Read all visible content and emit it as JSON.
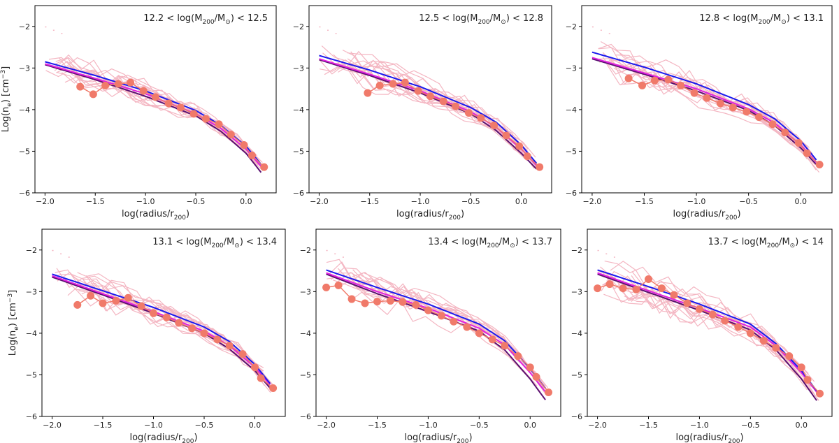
{
  "figure": {
    "ylabel": "Log(n",
    "ylabel_sub": "e",
    "ylabel_unit": ") [cm",
    "ylabel_sup": "−3",
    "ylabel_end": "]",
    "xlabel": "log(radius/r",
    "xlabel_sub": "200",
    "xlabel_end": ")"
  },
  "colors": {
    "individual": "#f4b6c2",
    "median": "#f07a6a",
    "model_blue": "#1a1aee",
    "model_magenta": "#e020e0",
    "model_purple": "#5a1070"
  },
  "chart_data": [
    {
      "type": "line",
      "title": "12.2 < log(M200/M☉) < 12.5",
      "title_parts": {
        "lo": "12.2",
        "hi": "12.5"
      },
      "xlim": [
        -2.1,
        0.3
      ],
      "ylim": [
        -6,
        -1.5
      ],
      "xticks": [
        "−2.0",
        "−1.5",
        "−1.0",
        "−0.5",
        "0.0"
      ],
      "yticks": [
        "−2",
        "−3",
        "−4",
        "−5",
        "−6"
      ],
      "median": {
        "x": [
          -1.65,
          -1.52,
          -1.4,
          -1.27,
          -1.15,
          -1.02,
          -0.9,
          -0.77,
          -0.65,
          -0.52,
          -0.4,
          -0.27,
          -0.15,
          -0.02,
          0.06,
          0.18
        ],
        "y": [
          -3.45,
          -3.63,
          -3.42,
          -3.38,
          -3.35,
          -3.55,
          -3.7,
          -3.85,
          -3.95,
          -4.1,
          -4.22,
          -4.35,
          -4.6,
          -4.85,
          -5.1,
          -5.38
        ]
      },
      "models": {
        "blue": {
          "x": [
            -2.0,
            -1.5,
            -1.0,
            -0.5,
            -0.25,
            0.0,
            0.18
          ],
          "y": [
            -2.85,
            -3.18,
            -3.55,
            -4.02,
            -4.38,
            -4.88,
            -5.4
          ]
        },
        "magenta": {
          "x": [
            -2.0,
            -1.5,
            -1.0,
            -0.5,
            -0.25,
            0.0,
            0.18
          ],
          "y": [
            -2.9,
            -3.25,
            -3.62,
            -4.1,
            -4.45,
            -4.95,
            -5.45
          ]
        },
        "purple": {
          "x": [
            -2.0,
            -1.5,
            -1.0,
            -0.5,
            -0.25,
            0.0,
            0.18
          ],
          "y": [
            -2.92,
            -3.28,
            -3.68,
            -4.15,
            -4.52,
            -5.05,
            -5.6
          ]
        }
      },
      "spread": 0.55
    },
    {
      "type": "line",
      "title": "12.5 < log(M200/M☉) < 12.8",
      "title_parts": {
        "lo": "12.5",
        "hi": "12.8"
      },
      "xlim": [
        -2.1,
        0.3
      ],
      "ylim": [
        -6,
        -1.5
      ],
      "xticks": [
        "−2.0",
        "−1.5",
        "−1.0",
        "−0.5",
        "0.0"
      ],
      "yticks": [
        "−2",
        "−3",
        "−4",
        "−5",
        "−6"
      ],
      "median": {
        "x": [
          -1.52,
          -1.4,
          -1.27,
          -1.15,
          -1.02,
          -0.9,
          -0.77,
          -0.65,
          -0.52,
          -0.4,
          -0.27,
          -0.15,
          -0.02,
          0.06,
          0.18
        ],
        "y": [
          -3.6,
          -3.42,
          -3.38,
          -3.35,
          -3.55,
          -3.68,
          -3.8,
          -3.92,
          -4.08,
          -4.2,
          -4.38,
          -4.62,
          -4.88,
          -5.12,
          -5.38
        ]
      },
      "models": {
        "blue": {
          "x": [
            -2.0,
            -1.5,
            -1.0,
            -0.5,
            -0.25,
            0.0,
            0.18
          ],
          "y": [
            -2.7,
            -3.05,
            -3.45,
            -3.95,
            -4.3,
            -4.85,
            -5.38
          ]
        },
        "magenta": {
          "x": [
            -2.0,
            -1.5,
            -1.0,
            -0.5,
            -0.25,
            0.0,
            0.18
          ],
          "y": [
            -2.78,
            -3.15,
            -3.55,
            -4.05,
            -4.42,
            -4.95,
            -5.42
          ]
        },
        "purple": {
          "x": [
            -2.0,
            -1.5,
            -1.0,
            -0.5,
            -0.25,
            0.0,
            0.18
          ],
          "y": [
            -2.8,
            -3.18,
            -3.6,
            -4.1,
            -4.5,
            -5.05,
            -5.5
          ]
        }
      },
      "spread": 0.6
    },
    {
      "type": "line",
      "title": "12.8 < log(M200/M☉) < 13.1",
      "title_parts": {
        "lo": "12.8",
        "hi": "13.1"
      },
      "xlim": [
        -2.1,
        0.3
      ],
      "ylim": [
        -6,
        -1.5
      ],
      "xticks": [
        "−2.0",
        "−1.5",
        "−1.0",
        "−0.5",
        "0.0"
      ],
      "yticks": [
        "−2",
        "−3",
        "−4",
        "−5",
        "−6"
      ],
      "median": {
        "x": [
          -1.65,
          -1.52,
          -1.4,
          -1.27,
          -1.15,
          -1.02,
          -0.9,
          -0.77,
          -0.65,
          -0.52,
          -0.4,
          -0.27,
          -0.15,
          -0.02,
          0.06,
          0.18
        ],
        "y": [
          -3.25,
          -3.42,
          -3.3,
          -3.28,
          -3.42,
          -3.6,
          -3.72,
          -3.85,
          -3.95,
          -4.05,
          -4.18,
          -4.35,
          -4.55,
          -4.8,
          -5.05,
          -5.32
        ]
      },
      "models": {
        "blue": {
          "x": [
            -2.0,
            -1.5,
            -1.0,
            -0.5,
            -0.25,
            0.0,
            0.18
          ],
          "y": [
            -2.62,
            -2.98,
            -3.38,
            -3.88,
            -4.22,
            -4.75,
            -5.3
          ]
        },
        "magenta": {
          "x": [
            -2.0,
            -1.5,
            -1.0,
            -0.5,
            -0.25,
            0.0,
            0.18
          ],
          "y": [
            -2.75,
            -3.12,
            -3.5,
            -3.98,
            -4.32,
            -4.85,
            -5.35
          ]
        },
        "purple": {
          "x": [
            -2.0,
            -1.5,
            -1.0,
            -0.5,
            -0.25,
            0.0,
            0.18
          ],
          "y": [
            -2.78,
            -3.15,
            -3.55,
            -4.02,
            -4.38,
            -4.92,
            -5.4
          ]
        }
      },
      "spread": 0.65
    },
    {
      "type": "line",
      "title": "13.1 < log(M200/M☉) < 13.4",
      "title_parts": {
        "lo": "13.1",
        "hi": "13.4"
      },
      "xlim": [
        -2.1,
        0.3
      ],
      "ylim": [
        -6,
        -1.5
      ],
      "xticks": [
        "−2.0",
        "−1.5",
        "−1.0",
        "−0.5",
        "0.0"
      ],
      "yticks": [
        "−2",
        "−3",
        "−4",
        "−5",
        "−6"
      ],
      "median": {
        "x": [
          -1.75,
          -1.62,
          -1.5,
          -1.37,
          -1.25,
          -1.12,
          -1.0,
          -0.87,
          -0.75,
          -0.62,
          -0.5,
          -0.37,
          -0.25,
          -0.12,
          0.0,
          0.06,
          0.18
        ],
        "y": [
          -3.32,
          -3.1,
          -3.28,
          -3.22,
          -3.15,
          -3.35,
          -3.52,
          -3.62,
          -3.75,
          -3.88,
          -4.0,
          -4.15,
          -4.3,
          -4.5,
          -4.82,
          -5.08,
          -5.32
        ]
      },
      "models": {
        "blue": {
          "x": [
            -2.0,
            -1.5,
            -1.0,
            -0.5,
            -0.25,
            0.0,
            0.18
          ],
          "y": [
            -2.58,
            -2.98,
            -3.38,
            -3.85,
            -4.2,
            -4.75,
            -5.3
          ]
        },
        "magenta": {
          "x": [
            -2.0,
            -1.5,
            -1.0,
            -0.5,
            -0.25,
            0.0,
            0.18
          ],
          "y": [
            -2.62,
            -3.05,
            -3.48,
            -3.95,
            -4.3,
            -4.82,
            -5.32
          ]
        },
        "purple": {
          "x": [
            -2.0,
            -1.5,
            -1.0,
            -0.5,
            -0.25,
            0.0,
            0.18
          ],
          "y": [
            -2.65,
            -3.08,
            -3.52,
            -4.0,
            -4.38,
            -4.9,
            -5.4
          ]
        }
      },
      "spread": 0.6
    },
    {
      "type": "line",
      "title": "13.4 < log(M200/M☉) < 13.7",
      "title_parts": {
        "lo": "13.4",
        "hi": "13.7"
      },
      "xlim": [
        -2.1,
        0.3
      ],
      "ylim": [
        -6,
        -1.5
      ],
      "xticks": [
        "−2.0",
        "−1.5",
        "−1.0",
        "−0.5",
        "0.0"
      ],
      "yticks": [
        "−2",
        "−3",
        "−4",
        "−5",
        "−6"
      ],
      "median": {
        "x": [
          -2.0,
          -1.88,
          -1.75,
          -1.62,
          -1.5,
          -1.37,
          -1.25,
          -1.12,
          -1.0,
          -0.87,
          -0.75,
          -0.62,
          -0.5,
          -0.37,
          -0.25,
          -0.12,
          0.0,
          0.06,
          0.18
        ],
        "y": [
          -2.9,
          -2.85,
          -3.18,
          -3.28,
          -3.24,
          -3.22,
          -3.25,
          -3.32,
          -3.45,
          -3.58,
          -3.72,
          -3.85,
          -4.0,
          -4.15,
          -4.3,
          -4.55,
          -4.82,
          -5.05,
          -5.42
        ]
      },
      "models": {
        "blue": {
          "x": [
            -2.0,
            -1.5,
            -1.0,
            -0.5,
            -0.25,
            0.0,
            0.18
          ],
          "y": [
            -2.48,
            -2.9,
            -3.3,
            -3.78,
            -4.18,
            -4.85,
            -5.42
          ]
        },
        "magenta": {
          "x": [
            -2.0,
            -1.5,
            -1.0,
            -0.5,
            -0.25,
            0.0,
            0.18
          ],
          "y": [
            -2.55,
            -3.0,
            -3.4,
            -3.88,
            -4.28,
            -4.95,
            -5.5
          ]
        },
        "purple": {
          "x": [
            -2.0,
            -1.5,
            -1.0,
            -0.5,
            -0.25,
            0.0,
            0.18
          ],
          "y": [
            -2.58,
            -3.05,
            -3.48,
            -3.95,
            -4.4,
            -5.1,
            -5.7
          ]
        }
      },
      "spread": 0.6
    },
    {
      "type": "line",
      "title": "13.7 < log(M200/M☉) < 14",
      "title_parts": {
        "lo": "13.7",
        "hi": "14"
      },
      "xlim": [
        -2.1,
        0.3
      ],
      "ylim": [
        -6,
        -1.5
      ],
      "xticks": [
        "−2.0",
        "−1.5",
        "−1.0",
        "−0.5",
        "0.0"
      ],
      "yticks": [
        "−2",
        "−3",
        "−4",
        "−5",
        "−6"
      ],
      "median": {
        "x": [
          -2.0,
          -1.88,
          -1.75,
          -1.62,
          -1.5,
          -1.37,
          -1.25,
          -1.12,
          -1.0,
          -0.87,
          -0.75,
          -0.62,
          -0.5,
          -0.37,
          -0.25,
          -0.12,
          0.0,
          0.06,
          0.18
        ],
        "y": [
          -2.92,
          -2.82,
          -2.92,
          -2.95,
          -2.7,
          -2.92,
          -3.08,
          -3.28,
          -3.42,
          -3.55,
          -3.7,
          -3.85,
          -4.0,
          -4.18,
          -4.35,
          -4.55,
          -4.82,
          -5.12,
          -5.45
        ]
      },
      "models": {
        "blue": {
          "x": [
            -2.0,
            -1.5,
            -1.0,
            -0.5,
            -0.25,
            0.0,
            0.18
          ],
          "y": [
            -2.48,
            -2.88,
            -3.3,
            -3.78,
            -4.25,
            -4.9,
            -5.48
          ]
        },
        "magenta": {
          "x": [
            -2.0,
            -1.5,
            -1.0,
            -0.5,
            -0.25,
            0.0,
            0.18
          ],
          "y": [
            -2.55,
            -2.98,
            -3.4,
            -3.85,
            -4.3,
            -4.95,
            -5.5
          ]
        },
        "purple": {
          "x": [
            -2.0,
            -1.5,
            -1.0,
            -0.5,
            -0.25,
            0.0,
            0.18
          ],
          "y": [
            -2.58,
            -3.02,
            -3.45,
            -3.92,
            -4.4,
            -5.1,
            -5.72
          ]
        }
      },
      "spread": 0.7
    }
  ]
}
